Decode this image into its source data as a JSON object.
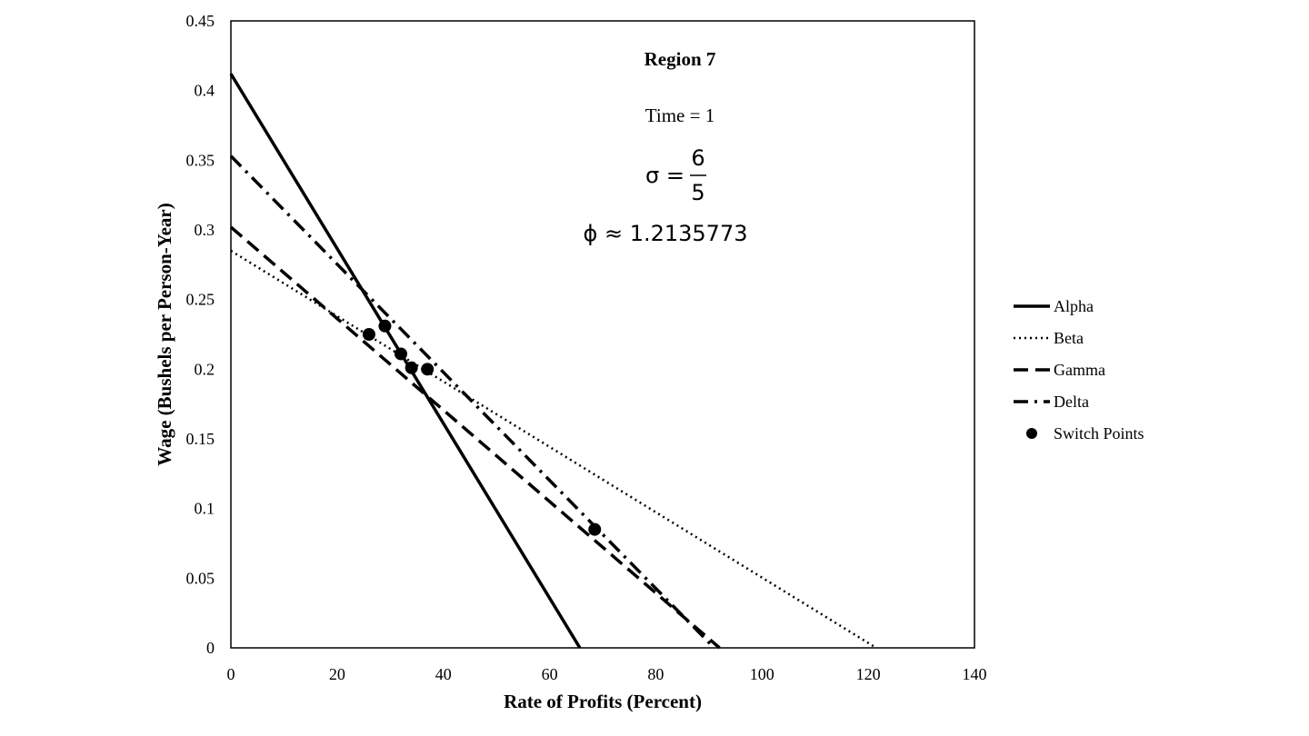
{
  "chart_data": {
    "type": "line",
    "xlabel": "Rate of Profits (Percent)",
    "ylabel": "Wage (Bushels per Person-Year)",
    "xlim": [
      0,
      140
    ],
    "ylim": [
      0,
      0.45
    ],
    "x_ticks": [
      "0",
      "20",
      "40",
      "60",
      "80",
      "100",
      "120",
      "140"
    ],
    "y_ticks": [
      "0",
      "0.05",
      "0.1",
      "0.15",
      "0.2",
      "0.25",
      "0.3",
      "0.35",
      "0.4",
      "0.45"
    ],
    "grid": false,
    "legend_position": "right",
    "annotations": {
      "region": "Region 7",
      "time": "Time = 1",
      "sigma_symbol": "σ =",
      "sigma_num": "6",
      "sigma_den": "5",
      "phi": "ϕ ≈ 1.2135773"
    },
    "series": [
      {
        "name": "Alpha",
        "style": "solid",
        "x": [
          0,
          65.7
        ],
        "y": [
          0.412,
          0
        ]
      },
      {
        "name": "Beta",
        "style": "dotted",
        "x": [
          0,
          121.5
        ],
        "y": [
          0.285,
          0
        ]
      },
      {
        "name": "Gamma",
        "style": "dashed",
        "x": [
          0,
          92
        ],
        "y": [
          0.302,
          0
        ]
      },
      {
        "name": "Delta",
        "style": "dashdot",
        "x": [
          0,
          91
        ],
        "y": [
          0.353,
          0
        ]
      },
      {
        "name": "Switch Points",
        "style": "marker",
        "x": [
          26,
          29,
          32,
          34,
          37,
          68.5
        ],
        "y": [
          0.225,
          0.231,
          0.211,
          0.201,
          0.2,
          0.085
        ]
      }
    ]
  }
}
